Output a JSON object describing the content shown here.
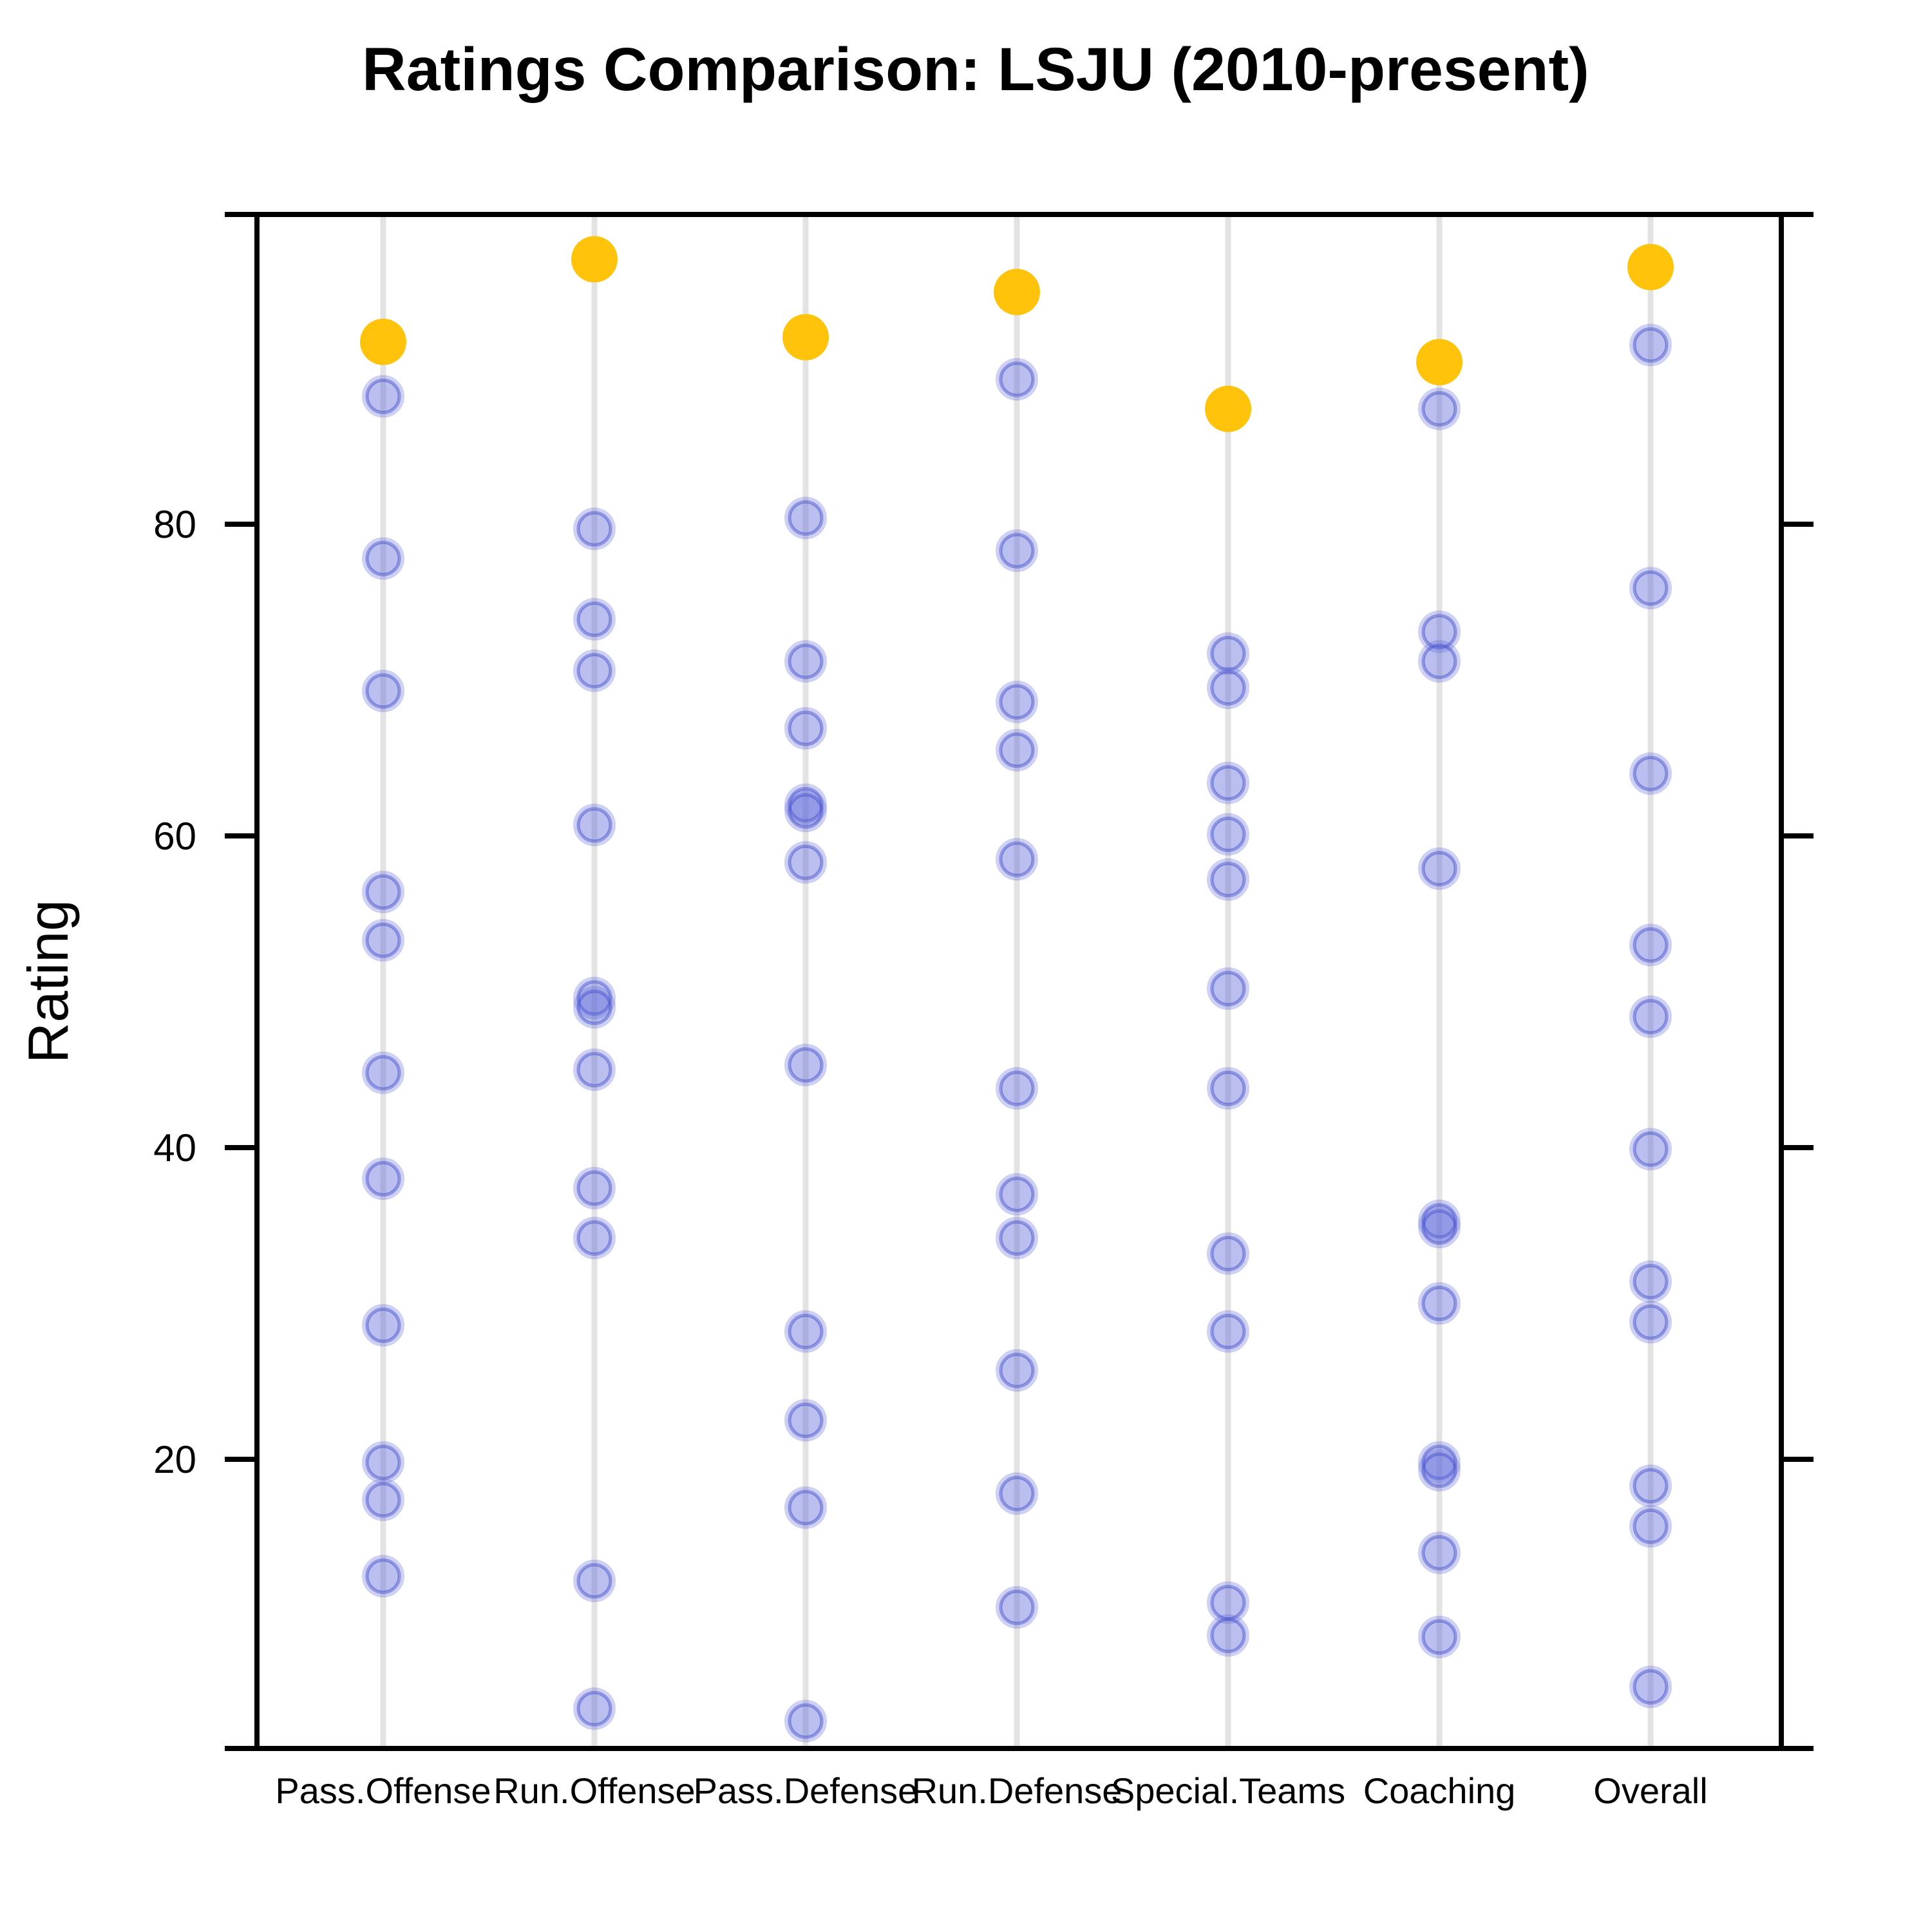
{
  "page": {
    "title": "Ratings Comparison: LSJU (2010-present)"
  },
  "chart_data": {
    "type": "scatter",
    "title": "Ratings Comparison: LSJU (2010-present)",
    "xlabel": "",
    "ylabel": "Rating",
    "ylim": [
      1.5,
      100
    ],
    "yticks": [
      20,
      40,
      60,
      80
    ],
    "grid": "vertical light-gray guide line per category, no horizontal gridlines",
    "legend_position": "none",
    "axis_ticks": "y ticks drawn outward on both left and right plot borders; only left side labeled",
    "categories": [
      "Pass.Offense",
      "Run.Offense",
      "Pass.Defense",
      "Run.Defense",
      "Special.Teams",
      "Coaching",
      "Overall"
    ],
    "series": [
      {
        "name": "past-season-ratings",
        "marker": "circle-semi-transparent-blue",
        "color": "#5C67D8",
        "stroke_color": "#4B55CD",
        "opacity": 0.42,
        "values_by_category": [
          [
            88.2,
            77.8,
            69.3,
            56.4,
            53.3,
            44.8,
            38.0,
            28.6,
            19.8,
            17.4,
            12.5
          ],
          [
            79.7,
            73.9,
            70.6,
            60.7,
            49.6,
            49.0,
            45.0,
            37.4,
            34.2,
            12.2,
            4.0
          ],
          [
            80.4,
            71.2,
            66.9,
            62.0,
            61.6,
            58.3,
            45.3,
            28.2,
            22.5,
            16.9,
            3.2
          ],
          [
            89.3,
            78.3,
            68.6,
            65.5,
            58.5,
            43.8,
            37.0,
            34.2,
            25.7,
            17.8,
            10.5
          ],
          [
            71.7,
            69.5,
            63.4,
            60.1,
            57.2,
            50.2,
            43.8,
            33.2,
            28.2,
            10.8,
            8.7
          ],
          [
            87.4,
            73.1,
            71.2,
            57.9,
            35.3,
            34.9,
            30.0,
            19.8,
            19.3,
            14.0,
            8.6
          ],
          [
            91.5,
            75.9,
            64.0,
            53.0,
            48.4,
            39.9,
            31.4,
            28.8,
            18.3,
            15.7,
            5.4
          ]
        ]
      }
    ],
    "highlight_series": {
      "name": "highlighted-rating-gold",
      "marker": "circle-solid-gold-large",
      "color": "#FFC30B",
      "values": [
        91.7,
        97.0,
        92.0,
        94.9,
        87.4,
        90.4,
        96.5
      ]
    }
  },
  "colors": {
    "highlight_gold": "#FFC30B",
    "point_blue": "#5C67D8",
    "point_blue_stroke": "#4B55CD",
    "guide_line_gray": "#E3E3E3",
    "axis_black": "#000000",
    "background": "#FFFFFF"
  }
}
